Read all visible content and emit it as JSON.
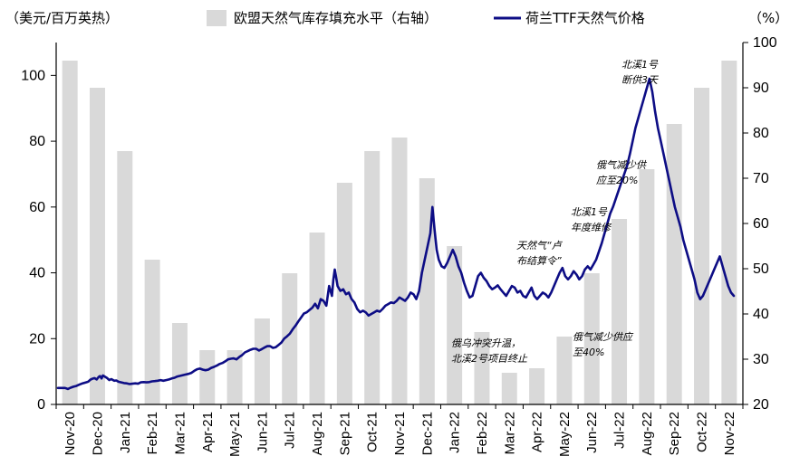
{
  "chart_data": {
    "type": "bar+line",
    "left_axis_unit": "（美元/百万英热）",
    "right_axis_unit": "（%）",
    "legend": {
      "bars": "欧盟天然气库存填充水平（右轴）",
      "line": "荷兰TTF天然气价格"
    },
    "colors": {
      "bars": "#d9d9d9",
      "line": "#0d0d85"
    },
    "left_axis": {
      "min": 0,
      "max": 110,
      "ticks": [
        0,
        20,
        40,
        60,
        80,
        100
      ]
    },
    "right_axis": {
      "min": 20,
      "max": 100,
      "ticks": [
        20,
        30,
        40,
        50,
        60,
        70,
        80,
        90,
        100
      ]
    },
    "categories": [
      "Nov-20",
      "Dec-20",
      "Jan-21",
      "Feb-21",
      "Mar-21",
      "Apr-21",
      "May-21",
      "Jun-21",
      "Jul-21",
      "Aug-21",
      "Sep-21",
      "Oct-21",
      "Nov-21",
      "Dec-21",
      "Jan-22",
      "Feb-22",
      "Mar-22",
      "Apr-22",
      "May-22",
      "Jun-22",
      "Jul-22",
      "Aug-22",
      "Sep-22",
      "Oct-22",
      "Nov-22"
    ],
    "storage_pct": [
      96,
      90,
      76,
      52,
      38,
      32,
      32,
      39,
      49,
      58,
      69,
      76,
      79,
      70,
      55,
      36,
      27,
      28,
      35,
      49,
      61,
      72,
      82,
      90,
      96
    ],
    "price_series": [
      [
        0.0,
        5.0
      ],
      [
        0.5,
        5.0
      ],
      [
        1.0,
        5.0
      ],
      [
        1.4,
        4.7
      ],
      [
        1.8,
        5.1
      ],
      [
        2.2,
        5.4
      ],
      [
        2.6,
        5.6
      ],
      [
        3.0,
        6.0
      ],
      [
        3.5,
        6.4
      ],
      [
        4.0,
        6.7
      ],
      [
        4.3,
        6.9
      ],
      [
        4.6,
        7.5
      ],
      [
        4.9,
        7.8
      ],
      [
        5.2,
        8.0
      ],
      [
        5.5,
        7.6
      ],
      [
        5.8,
        8.4
      ],
      [
        6.0,
        8.6
      ],
      [
        6.2,
        7.9
      ],
      [
        6.4,
        8.8
      ],
      [
        6.7,
        8.4
      ],
      [
        7.0,
        8.0
      ],
      [
        7.3,
        7.4
      ],
      [
        7.6,
        7.7
      ],
      [
        8.0,
        7.2
      ],
      [
        8.3,
        7.3
      ],
      [
        8.6,
        6.9
      ],
      [
        9.0,
        6.7
      ],
      [
        9.4,
        6.5
      ],
      [
        9.8,
        6.4
      ],
      [
        10.2,
        6.2
      ],
      [
        10.6,
        6.3
      ],
      [
        11.0,
        6.4
      ],
      [
        11.4,
        6.3
      ],
      [
        11.8,
        6.7
      ],
      [
        12.2,
        6.8
      ],
      [
        12.6,
        6.7
      ],
      [
        13.0,
        6.8
      ],
      [
        13.4,
        7.0
      ],
      [
        13.8,
        7.1
      ],
      [
        14.2,
        7.2
      ],
      [
        14.6,
        7.4
      ],
      [
        15.0,
        7.2
      ],
      [
        15.4,
        7.4
      ],
      [
        15.8,
        7.6
      ],
      [
        16.2,
        7.9
      ],
      [
        16.6,
        8.1
      ],
      [
        17.0,
        8.5
      ],
      [
        17.4,
        8.7
      ],
      [
        17.8,
        8.9
      ],
      [
        18.2,
        9.1
      ],
      [
        18.6,
        9.3
      ],
      [
        19.0,
        9.6
      ],
      [
        19.4,
        10.2
      ],
      [
        19.8,
        10.7
      ],
      [
        20.2,
        10.9
      ],
      [
        20.6,
        10.6
      ],
      [
        21.0,
        10.4
      ],
      [
        21.4,
        10.6
      ],
      [
        21.8,
        11.1
      ],
      [
        22.2,
        11.4
      ],
      [
        22.6,
        11.8
      ],
      [
        23.0,
        12.3
      ],
      [
        23.4,
        12.6
      ],
      [
        23.8,
        13.1
      ],
      [
        24.2,
        13.7
      ],
      [
        24.6,
        13.9
      ],
      [
        25.0,
        14.0
      ],
      [
        25.4,
        13.7
      ],
      [
        25.8,
        14.4
      ],
      [
        26.2,
        15.0
      ],
      [
        26.6,
        15.8
      ],
      [
        27.0,
        16.2
      ],
      [
        27.4,
        16.6
      ],
      [
        27.8,
        16.9
      ],
      [
        28.2,
        16.9
      ],
      [
        28.6,
        16.4
      ],
      [
        29.0,
        16.8
      ],
      [
        29.4,
        17.3
      ],
      [
        29.8,
        17.7
      ],
      [
        30.2,
        17.7
      ],
      [
        30.6,
        17.2
      ],
      [
        31.0,
        17.4
      ],
      [
        31.4,
        18.1
      ],
      [
        31.8,
        18.8
      ],
      [
        32.2,
        20.0
      ],
      [
        32.6,
        20.7
      ],
      [
        33.0,
        21.5
      ],
      [
        33.4,
        22.8
      ],
      [
        33.8,
        23.9
      ],
      [
        34.2,
        25.2
      ],
      [
        34.6,
        26.4
      ],
      [
        35.0,
        27.6
      ],
      [
        35.4,
        28.0
      ],
      [
        35.8,
        28.7
      ],
      [
        36.2,
        29.4
      ],
      [
        36.6,
        30.6
      ],
      [
        37.0,
        29.2
      ],
      [
        37.4,
        32.0
      ],
      [
        37.8,
        31.5
      ],
      [
        38.2,
        30.0
      ],
      [
        38.6,
        36.0
      ],
      [
        39.0,
        33.0
      ],
      [
        39.2,
        38.0
      ],
      [
        39.4,
        41.0
      ],
      [
        39.6,
        38.5
      ],
      [
        39.8,
        36.0
      ],
      [
        40.2,
        34.5
      ],
      [
        40.6,
        35.0
      ],
      [
        41.0,
        33.5
      ],
      [
        41.4,
        34.0
      ],
      [
        41.8,
        32.0
      ],
      [
        42.2,
        31.0
      ],
      [
        42.6,
        29.0
      ],
      [
        43.0,
        28.0
      ],
      [
        43.4,
        28.5
      ],
      [
        43.8,
        28.0
      ],
      [
        44.2,
        27.0
      ],
      [
        44.6,
        27.5
      ],
      [
        45.0,
        28.0
      ],
      [
        45.4,
        28.5
      ],
      [
        45.8,
        28.2
      ],
      [
        46.2,
        29.0
      ],
      [
        46.6,
        30.0
      ],
      [
        47.0,
        30.5
      ],
      [
        47.4,
        31.0
      ],
      [
        47.8,
        30.8
      ],
      [
        48.2,
        31.5
      ],
      [
        48.6,
        32.5
      ],
      [
        49.0,
        32.0
      ],
      [
        49.4,
        31.5
      ],
      [
        49.8,
        32.5
      ],
      [
        50.2,
        34.0
      ],
      [
        50.6,
        33.5
      ],
      [
        51.0,
        32.0
      ],
      [
        51.4,
        34.5
      ],
      [
        51.8,
        40.0
      ],
      [
        52.2,
        44.0
      ],
      [
        52.6,
        48.0
      ],
      [
        53.0,
        52.0
      ],
      [
        53.3,
        60.0
      ],
      [
        53.6,
        53.0
      ],
      [
        53.9,
        47.0
      ],
      [
        54.2,
        44.0
      ],
      [
        54.6,
        42.0
      ],
      [
        55.0,
        41.5
      ],
      [
        55.4,
        43.0
      ],
      [
        55.8,
        45.0
      ],
      [
        56.2,
        47.0
      ],
      [
        56.6,
        45.0
      ],
      [
        57.0,
        42.0
      ],
      [
        57.4,
        40.0
      ],
      [
        57.8,
        37.0
      ],
      [
        58.2,
        34.5
      ],
      [
        58.6,
        32.5
      ],
      [
        59.0,
        33.0
      ],
      [
        59.4,
        36.0
      ],
      [
        59.8,
        39.0
      ],
      [
        60.2,
        40.0
      ],
      [
        60.6,
        38.5
      ],
      [
        61.0,
        37.5
      ],
      [
        61.4,
        36.0
      ],
      [
        61.8,
        35.0
      ],
      [
        62.2,
        35.5
      ],
      [
        62.6,
        36.2
      ],
      [
        63.0,
        35.0
      ],
      [
        63.4,
        34.0
      ],
      [
        63.8,
        33.0
      ],
      [
        64.2,
        34.5
      ],
      [
        64.6,
        36.0
      ],
      [
        65.0,
        35.5
      ],
      [
        65.4,
        34.0
      ],
      [
        65.8,
        34.5
      ],
      [
        66.2,
        33.0
      ],
      [
        66.6,
        32.5
      ],
      [
        67.0,
        34.0
      ],
      [
        67.4,
        35.5
      ],
      [
        67.8,
        33.0
      ],
      [
        68.2,
        32.0
      ],
      [
        68.6,
        33.0
      ],
      [
        69.0,
        34.0
      ],
      [
        69.4,
        33.5
      ],
      [
        69.8,
        32.5
      ],
      [
        70.2,
        34.0
      ],
      [
        70.6,
        36.0
      ],
      [
        71.0,
        38.0
      ],
      [
        71.4,
        40.0
      ],
      [
        71.8,
        41.5
      ],
      [
        72.2,
        39.0
      ],
      [
        72.6,
        38.0
      ],
      [
        73.0,
        39.0
      ],
      [
        73.4,
        40.5
      ],
      [
        73.8,
        39.5
      ],
      [
        74.2,
        38.0
      ],
      [
        74.6,
        39.0
      ],
      [
        75.0,
        41.0
      ],
      [
        75.4,
        42.0
      ],
      [
        75.8,
        41.0
      ],
      [
        76.2,
        42.5
      ],
      [
        76.6,
        44.0
      ],
      [
        77.0,
        46.5
      ],
      [
        77.4,
        49.0
      ],
      [
        77.8,
        52.0
      ],
      [
        78.2,
        55.0
      ],
      [
        78.6,
        58.0
      ],
      [
        79.0,
        60.0
      ],
      [
        79.4,
        62.5
      ],
      [
        79.8,
        65.0
      ],
      [
        80.2,
        67.5
      ],
      [
        80.6,
        70.0
      ],
      [
        81.0,
        72.5
      ],
      [
        81.4,
        76.0
      ],
      [
        81.8,
        80.0
      ],
      [
        82.2,
        84.0
      ],
      [
        82.6,
        87.0
      ],
      [
        83.0,
        90.0
      ],
      [
        83.4,
        93.0
      ],
      [
        83.8,
        96.0
      ],
      [
        84.2,
        99.0
      ],
      [
        84.6,
        95.0
      ],
      [
        85.0,
        89.0
      ],
      [
        85.4,
        84.0
      ],
      [
        85.8,
        80.0
      ],
      [
        86.2,
        76.0
      ],
      [
        86.6,
        72.0
      ],
      [
        87.0,
        68.0
      ],
      [
        87.4,
        64.0
      ],
      [
        87.8,
        60.0
      ],
      [
        88.2,
        57.0
      ],
      [
        88.6,
        54.0
      ],
      [
        89.0,
        50.0
      ],
      [
        89.4,
        47.0
      ],
      [
        89.8,
        44.0
      ],
      [
        90.2,
        41.0
      ],
      [
        90.6,
        38.0
      ],
      [
        91.0,
        34.0
      ],
      [
        91.4,
        32.0
      ],
      [
        91.8,
        33.0
      ],
      [
        92.2,
        35.0
      ],
      [
        92.6,
        37.0
      ],
      [
        93.0,
        39.0
      ],
      [
        93.4,
        41.0
      ],
      [
        93.8,
        43.0
      ],
      [
        94.2,
        45.0
      ],
      [
        94.6,
        42.0
      ],
      [
        95.0,
        39.0
      ],
      [
        95.4,
        36.0
      ],
      [
        95.8,
        34.0
      ],
      [
        96.2,
        33.0
      ]
    ],
    "annotations": {
      "a1": [
        "北溪1号",
        "断供3天"
      ],
      "a2": [
        "俄气减少供",
        "应至20%"
      ],
      "a3": [
        "北溪1号",
        "年度维修"
      ],
      "a4": [
        "天然气“卢",
        "布结算令”"
      ],
      "a5": [
        "俄乌冲突升温，",
        "北溪2号项目终止"
      ],
      "a6": [
        "俄气减少供应",
        "至40%"
      ]
    }
  }
}
